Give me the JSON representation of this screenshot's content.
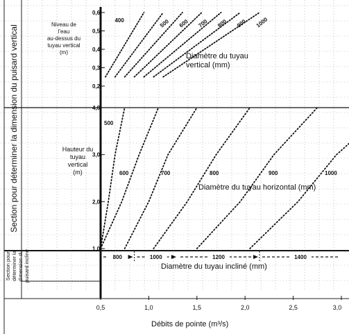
{
  "chart_data": [
    {
      "type": "line",
      "section": "vertical",
      "axis_label": "Niveau de l'eau au-dessus du tuyau vertical (m)",
      "series_label": "Diamètre du tuyau vertical (mm)",
      "y_ticks": [
        "0,2",
        "0,3",
        "0,4",
        "0,5",
        "0,6"
      ],
      "ylim": [
        0.2,
        0.6
      ],
      "curves": [
        {
          "label": "400",
          "points": [
            [
              0.55,
              0.25
            ],
            [
              0.95,
              0.6
            ]
          ]
        },
        {
          "label": "500",
          "points": [
            [
              0.65,
              0.25
            ],
            [
              1.15,
              0.6
            ]
          ]
        },
        {
          "label": "600",
          "points": [
            [
              0.75,
              0.25
            ],
            [
              1.35,
              0.6
            ]
          ]
        },
        {
          "label": "700",
          "points": [
            [
              0.85,
              0.25
            ],
            [
              1.55,
              0.6
            ]
          ]
        },
        {
          "label": "800",
          "points": [
            [
              0.95,
              0.25
            ],
            [
              1.75,
              0.6
            ]
          ]
        },
        {
          "label": "900",
          "points": [
            [
              1.05,
              0.25
            ],
            [
              1.95,
              0.6
            ]
          ]
        },
        {
          "label": "1000",
          "points": [
            [
              1.15,
              0.25
            ],
            [
              2.15,
              0.6
            ]
          ]
        }
      ]
    },
    {
      "type": "line",
      "section": "horizontal",
      "axis_label": "Hauteur du tuyau vertical (m)",
      "series_label": "Diamètre du tuyau horizontal (mm)",
      "y_ticks": [
        "1,0",
        "2,0",
        "3,0",
        "4,0"
      ],
      "ylim": [
        1.0,
        4.0
      ],
      "curves": [
        {
          "label": "500",
          "points": [
            [
              0.5,
              1.0
            ],
            [
              0.58,
              2.0
            ],
            [
              0.65,
              3.0
            ],
            [
              0.75,
              4.0
            ]
          ]
        },
        {
          "label": "600",
          "points": [
            [
              0.5,
              1.0
            ],
            [
              0.72,
              2.0
            ],
            [
              0.9,
              3.0
            ],
            [
              1.1,
              4.0
            ]
          ]
        },
        {
          "label": "700",
          "points": [
            [
              0.75,
              1.0
            ],
            [
              1.0,
              2.0
            ],
            [
              1.2,
              3.0
            ],
            [
              1.5,
              4.0
            ]
          ]
        },
        {
          "label": "800",
          "points": [
            [
              1.05,
              1.0
            ],
            [
              1.4,
              2.0
            ],
            [
              1.7,
              3.0
            ],
            [
              2.05,
              4.0
            ]
          ]
        },
        {
          "label": "900",
          "points": [
            [
              1.5,
              1.0
            ],
            [
              1.95,
              2.0
            ],
            [
              2.3,
              3.0
            ],
            [
              2.75,
              4.0
            ]
          ]
        },
        {
          "label": "1000",
          "points": [
            [
              2.05,
              1.0
            ],
            [
              2.55,
              2.0
            ],
            [
              2.95,
              3.0
            ],
            [
              3.5,
              4.0
            ]
          ]
        }
      ]
    },
    {
      "type": "line",
      "section": "inclined",
      "series_label": "Diamètre du tuyau incliné (mm)",
      "bands": [
        {
          "label": "800",
          "from": 0.5,
          "to": 0.85
        },
        {
          "label": "1000",
          "from": 0.85,
          "to": 1.3
        },
        {
          "label": "1200",
          "from": 1.3,
          "to": 2.15
        },
        {
          "label": "1400",
          "from": 2.15,
          "to": 3.0
        }
      ]
    }
  ],
  "x_axis": {
    "label": "Débits de pointe (m³/s)",
    "ticks": [
      "0,5",
      "1,0",
      "1,5",
      "2,0",
      "2,5",
      "3,0"
    ],
    "xlim": [
      0.5,
      3.0
    ]
  },
  "side_labels": {
    "vertical": "Section pour déterminer la dimension du puisard vertical",
    "inclined": "Section pour déterminer la dimension du puisard incliné"
  }
}
